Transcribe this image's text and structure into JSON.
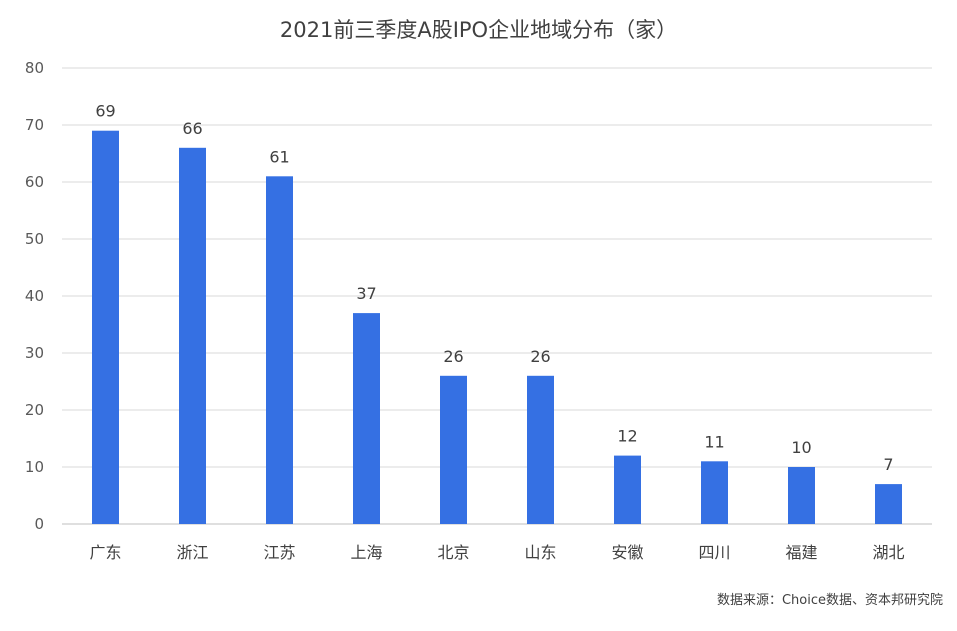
{
  "title": "2021前三季度A股IPO企业地域分布（家）",
  "source": "数据来源：Choice数据、资本邦研究院",
  "chart_data": {
    "type": "bar",
    "title": "2021前三季度A股IPO企业地域分布（家）",
    "xlabel": "",
    "ylabel": "",
    "categories": [
      "广东",
      "浙江",
      "江苏",
      "上海",
      "北京",
      "山东",
      "安徽",
      "四川",
      "福建",
      "湖北"
    ],
    "values": [
      69,
      66,
      61,
      37,
      26,
      26,
      12,
      11,
      10,
      7
    ],
    "ylim": [
      0,
      80
    ],
    "yticks": [
      0,
      10,
      20,
      30,
      40,
      50,
      60,
      70,
      80
    ],
    "grid": true,
    "bar_color": "#3570e3",
    "data_labels": true
  }
}
